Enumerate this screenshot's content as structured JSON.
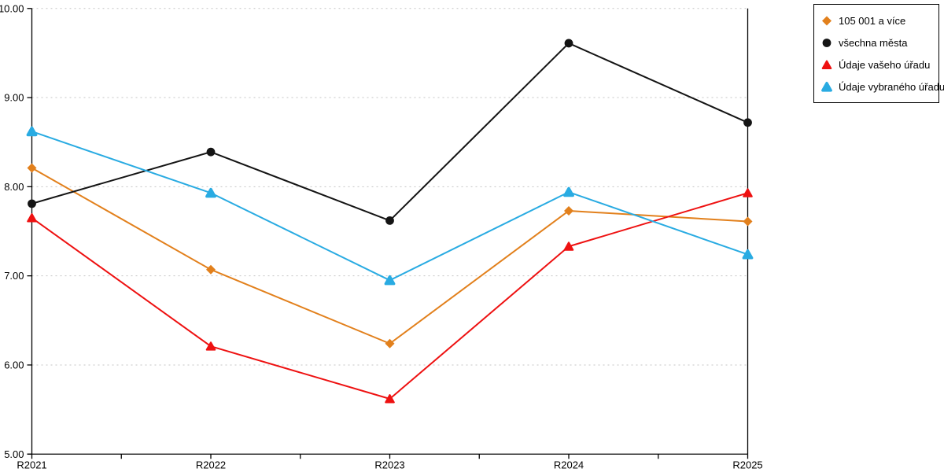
{
  "chart_data": {
    "type": "line",
    "title": "",
    "xlabel": "",
    "ylabel": "",
    "categories": [
      "R2021",
      "R2022",
      "R2023",
      "R2024",
      "R2025"
    ],
    "series": [
      {
        "name": "105 001 a více",
        "color": "#e2801c",
        "marker": "diamond",
        "values": [
          8.21,
          7.07,
          6.24,
          7.73,
          7.61
        ]
      },
      {
        "name": "všechna města",
        "color": "#141414",
        "marker": "circle",
        "values": [
          7.81,
          8.39,
          7.62,
          9.61,
          8.72
        ]
      },
      {
        "name": "Údaje vašeho úřadu",
        "color": "#ee1111",
        "marker": "triangle",
        "values": [
          7.65,
          6.21,
          5.62,
          7.33,
          7.93
        ]
      },
      {
        "name": "Údaje vybraného úřadu",
        "color": "#29abe2",
        "marker": "triangle-rounded",
        "values": [
          8.62,
          7.93,
          6.95,
          7.94,
          7.24
        ]
      }
    ],
    "ylim": [
      5,
      10
    ],
    "ytick_step": 1,
    "ytick_labels": [
      "5.00",
      "6.00",
      "7.00",
      "8.00",
      "9.00",
      "10.00"
    ],
    "grid": {
      "horizontal": true,
      "style": "dotted",
      "color": "#c4c4c4"
    },
    "axis_color": "#000000",
    "background": "#ffffff",
    "legend_position": "top-right"
  }
}
